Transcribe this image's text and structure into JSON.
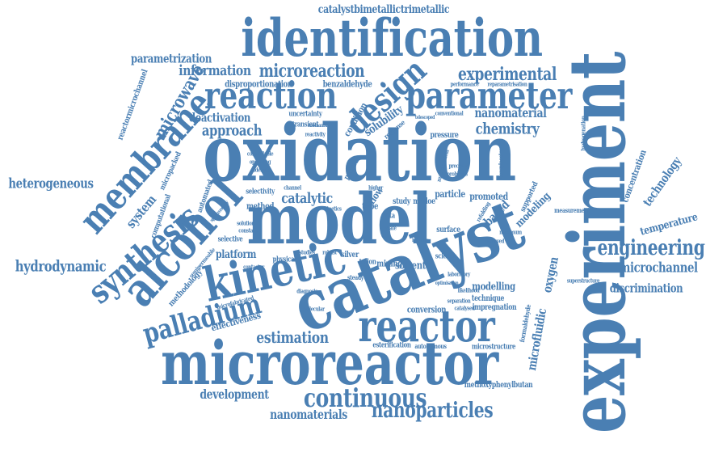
{
  "colors": {
    "word": "#4a7fb3",
    "background": "#ffffff"
  },
  "words": [
    "catalystbimetallictrimetallic",
    "identification",
    "parametrization",
    "information",
    "microreaction",
    "experimental",
    "reaction",
    "parameter",
    "design",
    "microwave",
    "membrane",
    "reactormicrochannel",
    "disproportionation",
    "benzaldehyde",
    "performance",
    "reparametrisation",
    "nanomaterial",
    "deactivation",
    "approach",
    "chemistry",
    "solubility",
    "uncertainty",
    "transient",
    "reactivity",
    "pressure",
    "conventional",
    "oxidation",
    "heterogeneous",
    "micropacked",
    "synthesis",
    "system",
    "computational",
    "automated",
    "selectivity",
    "method",
    "catalytic",
    "model",
    "particle",
    "promoted",
    "supported",
    "modeling",
    "based",
    "benzylacetone",
    "concentration",
    "technology",
    "temperature",
    "engineering",
    "hydrodynamic",
    "alcohol",
    "kinetic",
    "platform",
    "selective",
    "physical",
    "silver",
    "mining",
    "solvent",
    "science",
    "surface",
    "tube",
    "study",
    "mbdoe",
    "data",
    "flow",
    "experiment",
    "catalyst",
    "oxygen",
    "microfluidic",
    "microchannel",
    "discrimination",
    "methodology",
    "palladium",
    "effectiveness",
    "estimation",
    "reactor",
    "conversion",
    "modelling",
    "technique",
    "impregnation",
    "microfabricated",
    "molecular",
    "esterification",
    "autonomous",
    "microstructure",
    "formaldehyde",
    "microreactor",
    "development",
    "continuous",
    "methoxyphenylbutan",
    "nanomaterials",
    "nanoparticles",
    "hydrogenation",
    "measurement",
    "superstructure",
    "laboratory",
    "maximum",
    "observed",
    "refolding",
    "teflon",
    "constant",
    "solution",
    "contactor",
    "studies",
    "robust",
    "steady",
    "state",
    "diagnosis",
    "likelihood",
    "separation",
    "catalysed",
    "operating",
    "controllable",
    "aldehyde",
    "condition",
    "response",
    "telescoped",
    "mechanism",
    "precision",
    "mathematical",
    "problems",
    "spectroscopy",
    "semipermeable",
    "packed",
    "higher",
    "channel",
    "behavior",
    "kinetics",
    "optimisation"
  ]
}
